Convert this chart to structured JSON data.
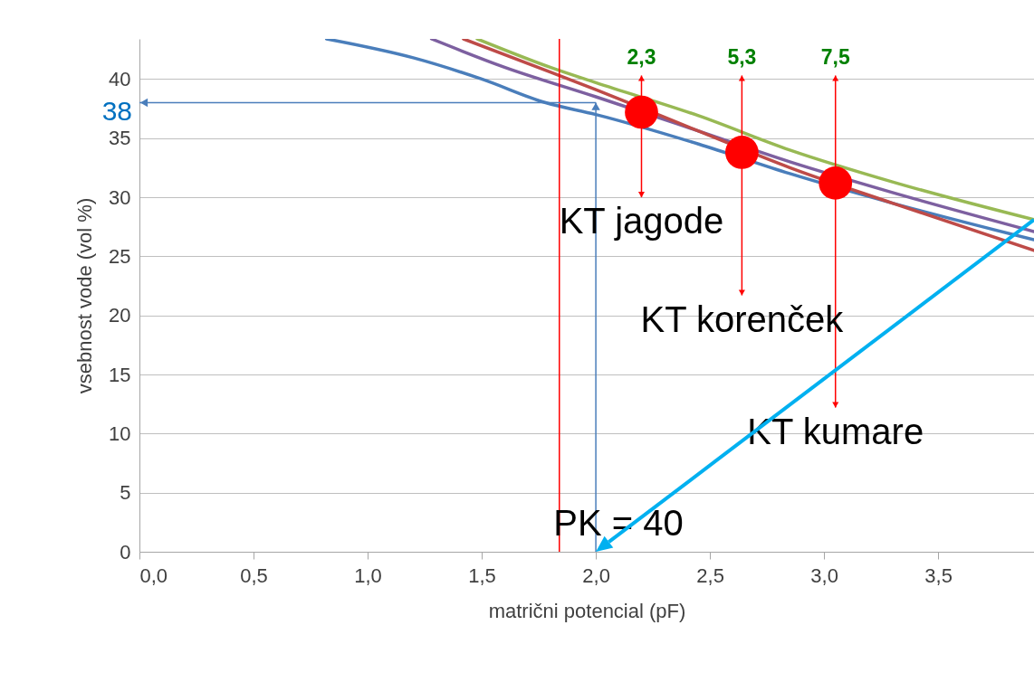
{
  "chart_data": {
    "type": "line",
    "xlabel": "matrični potencial (pF)",
    "ylabel": "vsebnost vode (vol %)",
    "xlim": [
      0,
      3.92
    ],
    "ylim": [
      0,
      43.4
    ],
    "xticks": [
      {
        "value": 0,
        "label": "0,0"
      },
      {
        "value": 0.5,
        "label": "0,5"
      },
      {
        "value": 1,
        "label": "1,0"
      },
      {
        "value": 1.5,
        "label": "1,5"
      },
      {
        "value": 2,
        "label": "2,0"
      },
      {
        "value": 2.5,
        "label": "2,5"
      },
      {
        "value": 3,
        "label": "3,0"
      },
      {
        "value": 3.5,
        "label": "3,5"
      }
    ],
    "yticks": [
      0,
      5,
      10,
      15,
      20,
      25,
      30,
      35,
      40
    ],
    "grid": "y",
    "marker": "none",
    "series": [
      {
        "color": "#4a7ebb",
        "x": [
          0.82,
          1.2,
          1.5,
          1.78,
          2.0,
          2.45,
          2.85,
          3.3,
          3.92
        ],
        "values": [
          43.4,
          41.8,
          40.0,
          38.0,
          37.0,
          34.5,
          32.0,
          29.5,
          26.4
        ]
      },
      {
        "color": "#7d60a0",
        "x": [
          1.28,
          1.6,
          2.0,
          2.45,
          2.85,
          3.3,
          3.92
        ],
        "values": [
          43.4,
          41.0,
          38.5,
          35.6,
          33.0,
          30.4,
          27.1
        ]
      },
      {
        "color": "#be4b48",
        "x": [
          1.42,
          1.8,
          2.0,
          2.45,
          2.85,
          3.3,
          3.92
        ],
        "values": [
          43.4,
          40.6,
          39.1,
          35.6,
          32.5,
          29.5,
          25.5
        ]
      },
      {
        "color": "#98b954",
        "x": [
          1.48,
          1.8,
          2.0,
          2.45,
          2.85,
          3.3,
          3.92
        ],
        "values": [
          43.4,
          41.0,
          39.7,
          36.9,
          34.0,
          31.3,
          28.1
        ]
      },
      {
        "type": "scatter",
        "marker": "circle",
        "color": "#ff0000",
        "x": [
          2.2,
          2.64,
          3.05
        ],
        "values": [
          37.2,
          33.8,
          31.2
        ],
        "errors": [
          [
            30.0,
            40.3
          ],
          [
            21.7,
            40.3
          ],
          [
            12.2,
            40.3
          ]
        ]
      }
    ],
    "ref_lines": [
      {
        "axis": "x",
        "value": 1.84,
        "color": "#ff0000"
      },
      {
        "axis": "y",
        "value": 38,
        "label": "38",
        "color": "#4a7ebb"
      },
      {
        "axis": "x",
        "value": 2.0,
        "color": "#4a7ebb"
      }
    ],
    "annotations": [
      "2,3",
      "5,3",
      "7,5",
      "KT jagode",
      "KT korenček",
      "KT kumare",
      "PK = 40"
    ]
  }
}
